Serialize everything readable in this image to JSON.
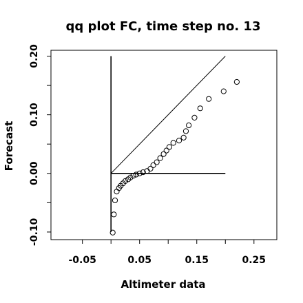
{
  "chart_data": {
    "type": "scatter",
    "title": "qq plot FC, time step no. 13",
    "xlabel": "Altimeter data",
    "ylabel": "Forecast",
    "xlim": [
      -0.105,
      0.29
    ],
    "ylim": [
      -0.113,
      0.21
    ],
    "x_ticks": [
      -0.05,
      0.05,
      0.15,
      0.25
    ],
    "x_tick_labels": [
      "-0.05",
      "0.05",
      "0.15",
      "0.25"
    ],
    "x_minor_ticks": [
      0.0,
      0.1,
      0.2
    ],
    "y_ticks": [
      -0.1,
      0.0,
      0.1,
      0.2
    ],
    "y_tick_labels": [
      "-0.10",
      "0.00",
      "0.10",
      "0.20"
    ],
    "y_minor_ticks": [
      -0.05,
      0.05,
      0.15
    ],
    "grid": false,
    "points": [
      [
        0.003,
        -0.101
      ],
      [
        0.005,
        -0.07
      ],
      [
        0.007,
        -0.046
      ],
      [
        0.01,
        -0.031
      ],
      [
        0.014,
        -0.025
      ],
      [
        0.017,
        -0.021
      ],
      [
        0.021,
        -0.017
      ],
      [
        0.025,
        -0.013
      ],
      [
        0.03,
        -0.01
      ],
      [
        0.034,
        -0.007
      ],
      [
        0.039,
        -0.004
      ],
      [
        0.044,
        -0.002
      ],
      [
        0.05,
        0.0
      ],
      [
        0.056,
        0.002
      ],
      [
        0.063,
        0.004
      ],
      [
        0.069,
        0.008
      ],
      [
        0.074,
        0.014
      ],
      [
        0.08,
        0.019
      ],
      [
        0.086,
        0.026
      ],
      [
        0.092,
        0.033
      ],
      [
        0.097,
        0.039
      ],
      [
        0.102,
        0.045
      ],
      [
        0.109,
        0.052
      ],
      [
        0.119,
        0.056
      ],
      [
        0.127,
        0.061
      ],
      [
        0.131,
        0.072
      ],
      [
        0.136,
        0.082
      ],
      [
        0.146,
        0.095
      ],
      [
        0.156,
        0.111
      ],
      [
        0.171,
        0.127
      ],
      [
        0.197,
        0.14
      ],
      [
        0.22,
        0.156
      ]
    ],
    "reference_lines": [
      {
        "from": [
          0.0,
          0.0
        ],
        "to": [
          0.2,
          0.2
        ]
      },
      {
        "from": [
          0.0,
          0.0
        ],
        "to": [
          0.2,
          0.0
        ]
      },
      {
        "from": [
          0.0,
          -0.1
        ],
        "to": [
          0.0,
          0.2
        ]
      }
    ]
  }
}
